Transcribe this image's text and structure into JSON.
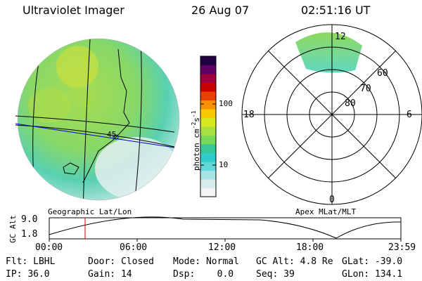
{
  "header": {
    "instrument": "Ultraviolet Imager",
    "date": "26 Aug 07",
    "time": "02:51:16 UT"
  },
  "left_panel": {
    "caption": "Geographic Lat/Lon",
    "marker_label": "45"
  },
  "colorbar": {
    "unit_label": "photon cm",
    "unit_sup1": "-2",
    "unit_mid": "s",
    "unit_sup2": "-1",
    "ticks": [
      "100",
      "10"
    ],
    "colors": [
      "#f4f4f4",
      "#d8ecec",
      "#a8e4e4",
      "#60d8d8",
      "#30cccc",
      "#38c898",
      "#78d858",
      "#a8e040",
      "#d8e820",
      "#f8c800",
      "#f89000",
      "#e84000",
      "#c80000",
      "#a00040",
      "#600060",
      "#200040"
    ]
  },
  "right_panel": {
    "caption": "Apex MLat/MLT",
    "hours": {
      "top": "12",
      "left": "18",
      "right": "6",
      "bottom": "0"
    },
    "lat_labels": [
      "60",
      "70",
      "80"
    ]
  },
  "alt_plot": {
    "ylabel": "GC Alt",
    "yticks": [
      "9.0",
      "1.8"
    ],
    "xticks": [
      "00:00",
      "06:00",
      "12:00",
      "18:00",
      "23:59"
    ]
  },
  "footer": {
    "row1": [
      {
        "label": "Flt:",
        "value": "LBHL"
      },
      {
        "label": "Door:",
        "value": "Closed"
      },
      {
        "label": "Mode:",
        "value": "Normal"
      },
      {
        "label": "GC Alt:",
        "value": "4.8 Re"
      },
      {
        "label": "GLat:",
        "value": "-39.0"
      }
    ],
    "row2": [
      {
        "label": "IP:",
        "value": "36.0"
      },
      {
        "label": "Gain:",
        "value": "14"
      },
      {
        "label": "Dsp:",
        "value": "0.0"
      },
      {
        "label": "Seq:",
        "value": "39"
      },
      {
        "label": "GLon:",
        "value": "134.1"
      }
    ]
  }
}
